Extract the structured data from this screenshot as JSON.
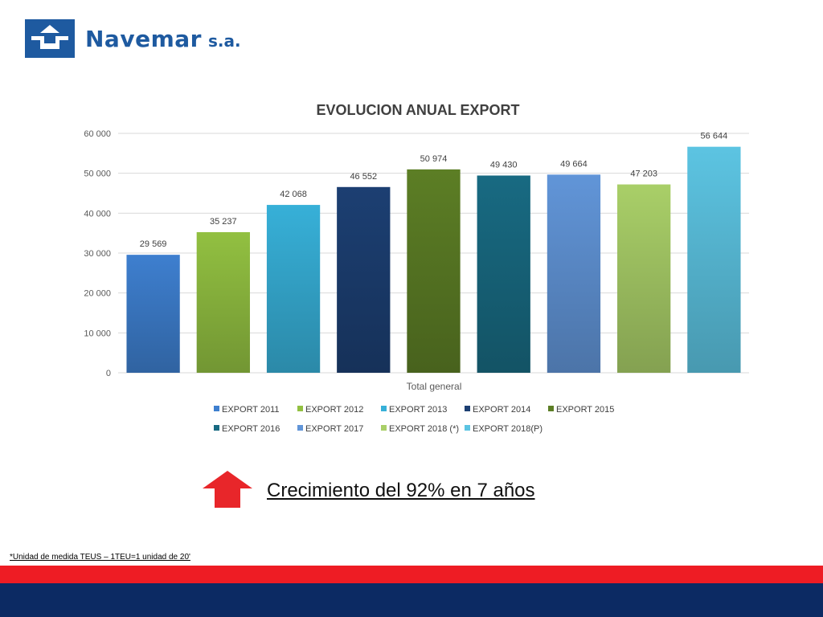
{
  "logo": {
    "name": "Navemar",
    "suffix": "s.a."
  },
  "chart_data": {
    "type": "bar",
    "title": "EVOLUCION ANUAL EXPORT",
    "xlabel": "",
    "ylabel": "",
    "categories": [
      "Total general"
    ],
    "ylim": [
      0,
      60000
    ],
    "yticks": [
      0,
      10000,
      20000,
      30000,
      40000,
      50000,
      60000
    ],
    "ytick_labels": [
      "0",
      "10 000",
      "20 000",
      "30 000",
      "40 000",
      "50 000",
      "60 000"
    ],
    "grid": true,
    "legend_position": "bottom",
    "series": [
      {
        "name": "EXPORT  2011",
        "values": [
          29569
        ],
        "label": "29 569",
        "color": "#3e7fcf"
      },
      {
        "name": "EXPORT  2012",
        "values": [
          35237
        ],
        "label": "35 237",
        "color": "#92c041"
      },
      {
        "name": "EXPORT  2013",
        "values": [
          42068
        ],
        "label": "42 068",
        "color": "#37b0d8"
      },
      {
        "name": "EXPORT  2014",
        "values": [
          46552
        ],
        "label": "46 552",
        "color": "#1c3f72"
      },
      {
        "name": "EXPORT  2015",
        "values": [
          50974
        ],
        "label": "50 974",
        "color": "#5c7e25"
      },
      {
        "name": "EXPORT  2016",
        "values": [
          49430
        ],
        "label": "49 430",
        "color": "#186a82"
      },
      {
        "name": "EXPORT  2017",
        "values": [
          49664
        ],
        "label": "49 664",
        "color": "#6195d8"
      },
      {
        "name": "EXPORT  2018 (*)",
        "values": [
          47203
        ],
        "label": "47 203",
        "color": "#a9cf68"
      },
      {
        "name": "EXPORT  2018(P)",
        "values": [
          56644
        ],
        "label": "56 644",
        "color": "#5cc4e2"
      }
    ]
  },
  "growth": {
    "text": "Crecimiento del 92% en 7 años",
    "color": "#e8262a"
  },
  "footnote": "*Unidad de medida TEUS – 1TEU=1 unidad de 20'",
  "colors": {
    "brand_blue": "#1e5aa0",
    "band_red": "#ee1c24",
    "band_navy": "#0c2a63"
  }
}
